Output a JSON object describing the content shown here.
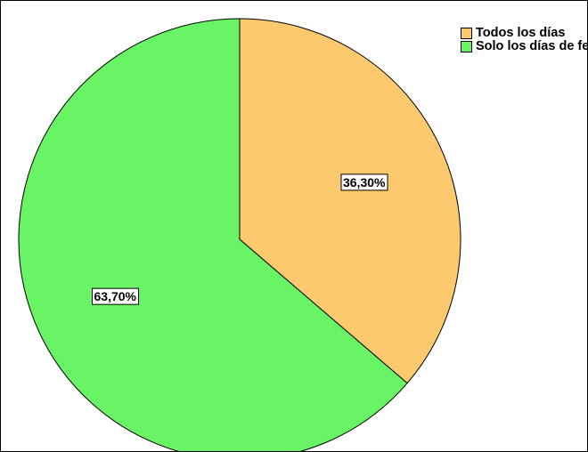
{
  "chart_data": {
    "type": "pie",
    "title": "",
    "slices": [
      {
        "label": "Todos los días",
        "value": 36.3,
        "data_label": "36,30%",
        "color": "#FCC96E"
      },
      {
        "label": "Solo los días de feria",
        "value": 63.7,
        "data_label": "63,70%",
        "color": "#69F465"
      }
    ],
    "legend": {
      "placement": "top-right",
      "items": [
        {
          "label": "Todos los días",
          "color": "#FCC96E"
        },
        {
          "label": "Solo los días de feria",
          "color": "#69F465"
        }
      ]
    },
    "start_angle_deg": 0,
    "direction": "clockwise",
    "border_color": "#000000"
  }
}
